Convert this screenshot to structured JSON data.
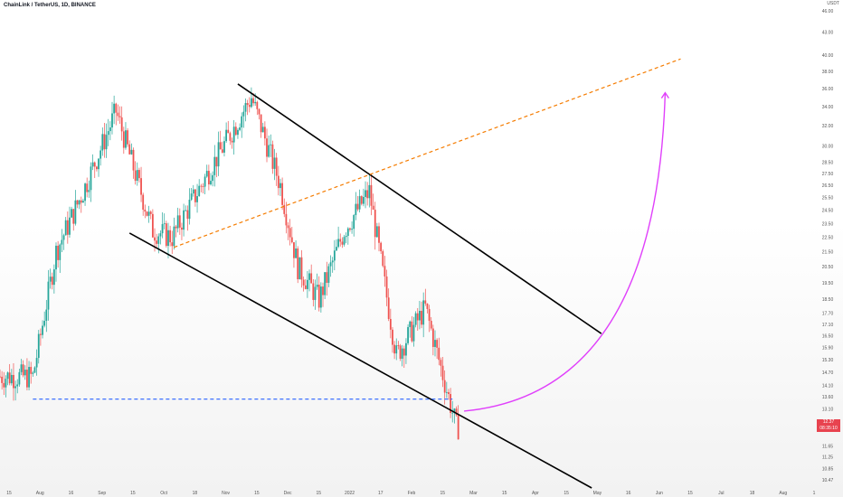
{
  "header": {
    "title": "ChainLink / TetherUS, 1D, BINANCE",
    "currency": "USDT"
  },
  "price_badge": {
    "price": "12.37",
    "countdown": "08:35:10"
  },
  "colors": {
    "up": "#26a69a",
    "down": "#ef5350",
    "channel": "#000000",
    "orange_dashed": "#f57c00",
    "blue_dashed": "#2962ff",
    "arrow": "#e040fb"
  },
  "chart_data": {
    "type": "candlestick",
    "title": "ChainLink / TetherUS, 1D, BINANCE",
    "y_scale": "log",
    "ylim": [
      10.2,
      46.5
    ],
    "y_ticks": [
      "46.00",
      "43.00",
      "40.00",
      "38.00",
      "36.00",
      "34.00",
      "32.00",
      "30.00",
      "28.50",
      "27.50",
      "26.50",
      "25.50",
      "24.50",
      "23.50",
      "22.50",
      "21.50",
      "20.50",
      "19.50",
      "18.50",
      "17.70",
      "17.10",
      "16.50",
      "15.90",
      "15.30",
      "14.70",
      "14.10",
      "13.60",
      "13.10",
      "12.60",
      "12.37",
      "11.65",
      "11.25",
      "10.85",
      "10.47"
    ],
    "x_ticks": [
      "15",
      "Aug",
      "16",
      "Sep",
      "15",
      "Oct",
      "18",
      "Nov",
      "15",
      "Dec",
      "15",
      "2022",
      "17",
      "Feb",
      "15",
      "Mar",
      "15",
      "Apr",
      "15",
      "May",
      "16",
      "Jun",
      "15",
      "Jul",
      "18",
      "Aug",
      "1"
    ],
    "x_range": [
      "2021-07-03",
      "2022-08-28"
    ],
    "candles_ohlc_approx": [
      {
        "date": "2021-07-20",
        "low": 13.4,
        "close": 14.5
      },
      {
        "date": "2021-08-01",
        "close": 21.5
      },
      {
        "date": "2021-08-15",
        "close": 26.0
      },
      {
        "date": "2021-09-01",
        "close": 33.5
      },
      {
        "date": "2021-09-20",
        "close": 23.0
      },
      {
        "date": "2021-09-30",
        "low": 20.5,
        "close": 22.5
      },
      {
        "date": "2021-10-20",
        "close": 28.0
      },
      {
        "date": "2021-11-10",
        "high": 38.0,
        "close": 35.0
      },
      {
        "date": "2021-11-25",
        "close": 26.5
      },
      {
        "date": "2021-12-04",
        "low": 15.5,
        "close": 20.5
      },
      {
        "date": "2021-12-15",
        "close": 18.5
      },
      {
        "date": "2021-12-28",
        "close": 23.0
      },
      {
        "date": "2022-01-10",
        "high": 28.5,
        "close": 26.0
      },
      {
        "date": "2022-01-24",
        "low": 13.8,
        "close": 15.5
      },
      {
        "date": "2022-02-08",
        "high": 19.3,
        "close": 18.0
      },
      {
        "date": "2022-02-24",
        "low": 11.7,
        "close": 12.37
      }
    ],
    "lines": [
      {
        "name": "channel-upper",
        "from": {
          "date": "2021-11-03",
          "price": 36.5
        },
        "to": {
          "date": "2022-05-10",
          "price": 16.6
        }
      },
      {
        "name": "channel-lower",
        "from": {
          "date": "2021-09-08",
          "price": 22.8
        },
        "to": {
          "date": "2022-05-05",
          "price": 10.2
        }
      },
      {
        "name": "orange-dashed-trend",
        "from": {
          "date": "2021-10-01",
          "price": 21.8
        },
        "to": {
          "date": "2022-06-20",
          "price": 39.5
        }
      },
      {
        "name": "blue-dashed-support",
        "from": {
          "date": "2021-07-20",
          "price": 13.5
        },
        "to": {
          "date": "2022-02-22",
          "price": 13.5
        }
      },
      {
        "name": "projection-arrow",
        "from": {
          "date": "2022-02-28",
          "price": 13.0
        },
        "to": {
          "date": "2022-06-12",
          "price": 35.5
        }
      }
    ]
  }
}
